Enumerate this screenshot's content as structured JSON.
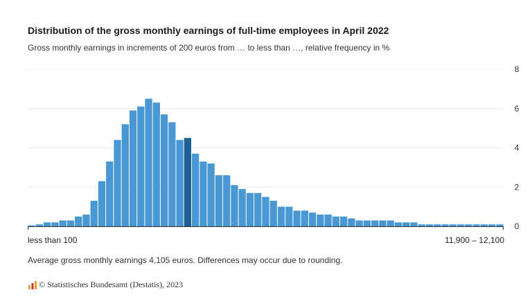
{
  "chart_data": {
    "type": "bar",
    "title": "Distribution of the gross monthly earnings of full-time employees in April 2022",
    "subtitle": "Gross monthly earnings in increments of 200 euros from … to less than …, relative frequency in %",
    "xlabel": "",
    "ylabel": "",
    "x_tick_labels": [
      "less than 100",
      "11,900 – 12,100"
    ],
    "y_ticks": [
      0,
      2,
      4,
      6,
      8
    ],
    "ylim": [
      0,
      8
    ],
    "grid": true,
    "y_axis_position": "right",
    "bar_color": "#4a98d3",
    "highlight_color": "#1f5f93",
    "highlight_index": 20,
    "values": [
      0.05,
      0.1,
      0.2,
      0.2,
      0.3,
      0.3,
      0.5,
      0.6,
      1.3,
      2.3,
      3.3,
      4.4,
      5.2,
      5.9,
      6.1,
      6.5,
      6.3,
      5.7,
      5.3,
      4.4,
      4.5,
      3.7,
      3.3,
      3.2,
      2.6,
      2.6,
      2.1,
      1.9,
      1.7,
      1.7,
      1.5,
      1.3,
      1.0,
      1.0,
      0.8,
      0.8,
      0.7,
      0.6,
      0.6,
      0.5,
      0.5,
      0.4,
      0.3,
      0.3,
      0.3,
      0.3,
      0.3,
      0.2,
      0.2,
      0.2,
      0.1,
      0.1,
      0.1,
      0.1,
      0.1,
      0.1,
      0.1,
      0.1,
      0.1,
      0.1,
      0.1
    ]
  },
  "note": "Average gross monthly earnings 4,105 euros. Differences may occur due to rounding.",
  "source": "© Statistisches Bundesamt (Destatis), 2023",
  "colors": {
    "logo_a": "#e8a33d",
    "logo_b": "#c0392b",
    "grid": "#ececec"
  }
}
